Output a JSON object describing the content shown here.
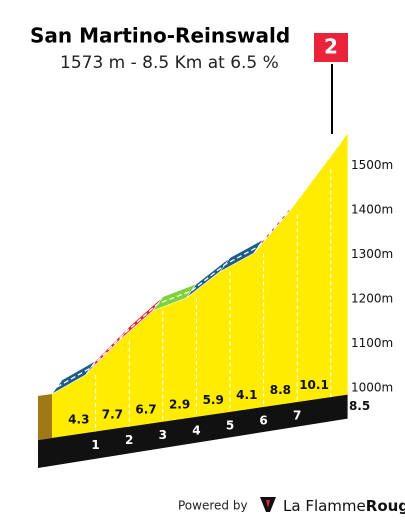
{
  "chart_data": {
    "type": "profile",
    "title": "San Martino-Reinswald",
    "subtitle": "1573 m - 8.5 Km at 6.5 %",
    "flag": "2",
    "x": [
      0,
      1,
      2,
      3,
      4,
      5,
      6,
      7,
      8,
      8.5
    ],
    "elevation": [
      1018,
      1061,
      1138,
      1205,
      1234,
      1293,
      1334,
      1422,
      1523,
      1573
    ],
    "gradients": [
      4.3,
      7.7,
      6.7,
      2.9,
      5.9,
      4.1,
      8.8,
      10.1,
      null
    ],
    "segment_colors": [
      "#1f5c8a",
      "#e8233a",
      "#e8233a",
      "#7ed23a",
      "#1f5c8a",
      "#1f5c8a",
      "#e8233a",
      "#111111",
      "#e8233a"
    ],
    "fill_color": "#ffec00",
    "xticks": [
      1,
      2,
      3,
      4,
      5,
      6,
      7,
      8.5
    ],
    "ylim": [
      1018,
      1573
    ],
    "yticks": [
      {
        "value": 1000,
        "label": "1000m"
      },
      {
        "value": 1100,
        "label": "1100m"
      },
      {
        "value": 1200,
        "label": "1200m"
      },
      {
        "value": 1300,
        "label": "1300m"
      },
      {
        "value": 1400,
        "label": "1400m"
      },
      {
        "value": 1500,
        "label": "1500m"
      }
    ]
  },
  "footer": {
    "powered": "Powered by",
    "brand_a": "La Flamme",
    "brand_b": "Rouge"
  }
}
